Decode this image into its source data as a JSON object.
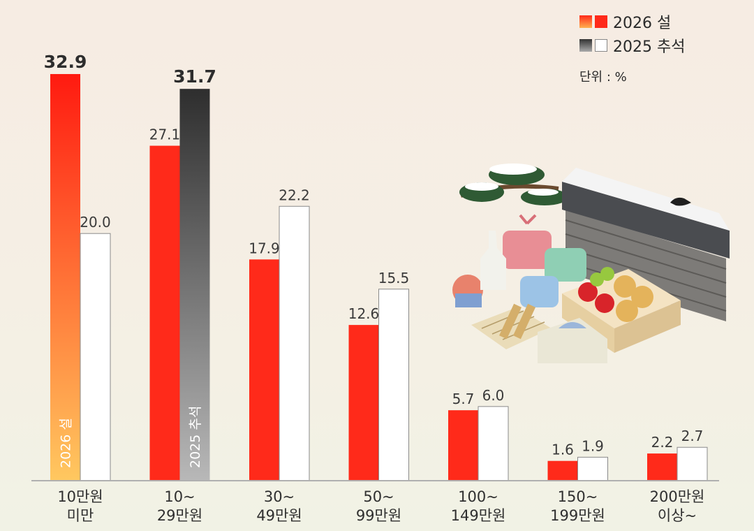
{
  "chart_data": {
    "type": "bar",
    "categories": [
      [
        "10만원",
        "미만"
      ],
      [
        "10~",
        "29만원"
      ],
      [
        "30~",
        "49만원"
      ],
      [
        "50~",
        "99만원"
      ],
      [
        "100~",
        "149만원"
      ],
      [
        "150~",
        "199만원"
      ],
      [
        "200만원",
        "이상~"
      ]
    ],
    "series": [
      {
        "name": "2026 설",
        "values": [
          32.9,
          27.1,
          17.9,
          12.6,
          5.7,
          1.6,
          2.2
        ],
        "color": "#ff2a1a"
      },
      {
        "name": "2025 추석",
        "values": [
          20.0,
          31.7,
          22.2,
          15.5,
          6.0,
          1.9,
          2.7
        ],
        "color": "#ffffff"
      }
    ],
    "value_labels": [
      [
        "32.9",
        "27.1",
        "17.9",
        "12.6",
        "5.7",
        "1.6",
        "2.2"
      ],
      [
        "20.0",
        "31.7",
        "22.2",
        "15.5",
        "6.0",
        "1.9",
        "2.7"
      ]
    ],
    "highlights": [
      {
        "series": 0,
        "category": 0,
        "fill": "gradient-orange",
        "label": "2026 설"
      },
      {
        "series": 1,
        "category": 1,
        "fill": "gradient-gray",
        "label": "2025 추석"
      }
    ],
    "ylim": [
      0,
      35
    ],
    "grid": false,
    "legend_position": "top-right"
  },
  "legend": {
    "items": [
      {
        "label": "2026 설",
        "colors": [
          "#ff6a2a",
          "#ff2a1a"
        ]
      },
      {
        "label": "2025 추석",
        "colors": [
          "#555555",
          "#ffffff"
        ]
      }
    ],
    "unit": "단위 : %"
  },
  "colors": {
    "accent_red": "#ff2a1a",
    "orange_top": "#ff1a10",
    "orange_bottom": "#ffc860",
    "gray_top": "#2e2e2e",
    "gray_bottom": "#b5b5b5"
  },
  "illustration": {
    "icon": "holiday-gift-set-illustration"
  }
}
